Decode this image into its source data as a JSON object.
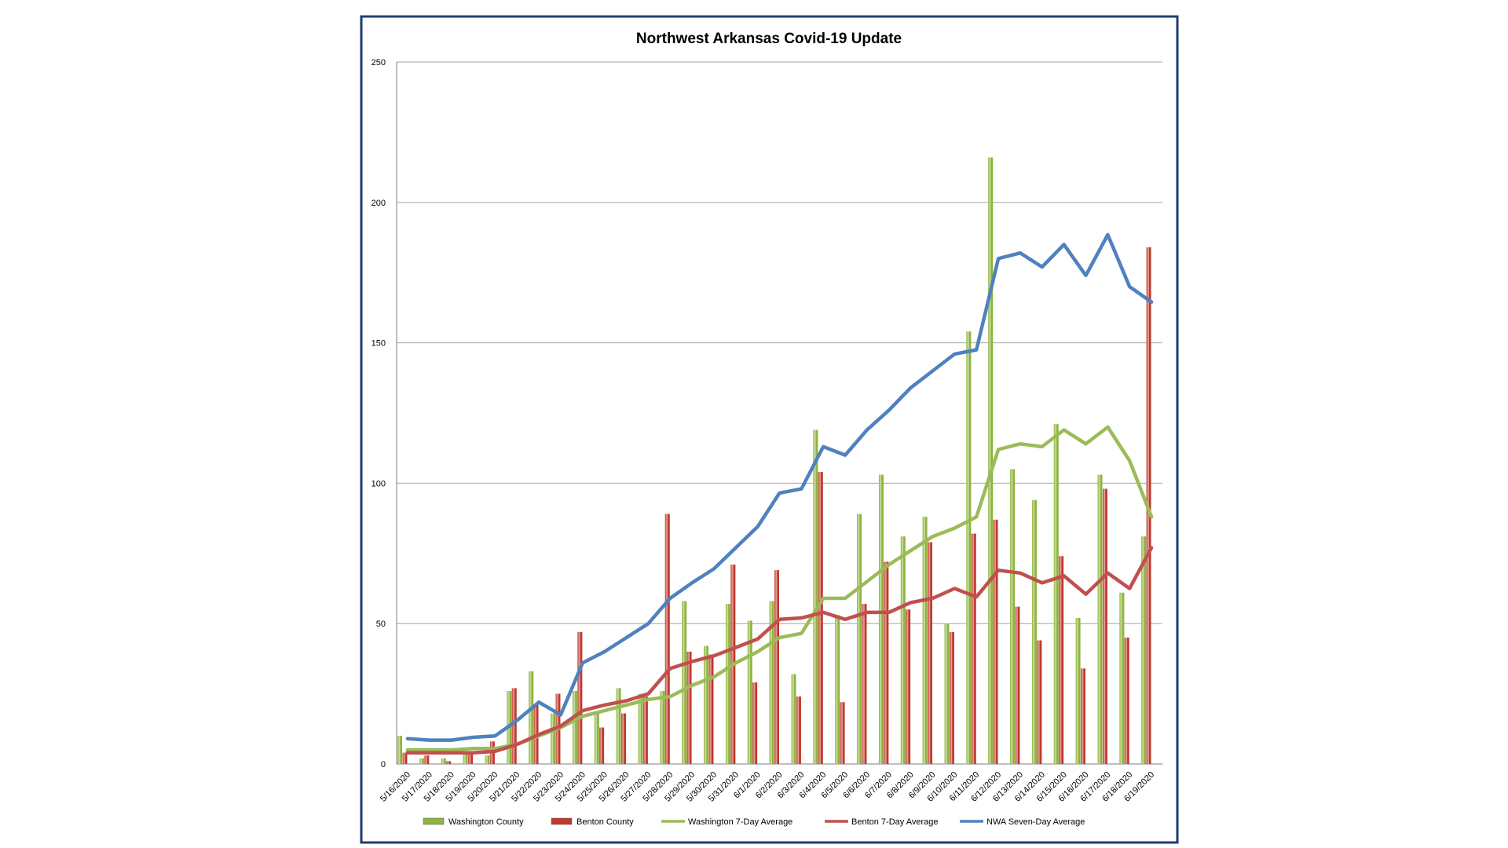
{
  "chart_data": {
    "type": "bar",
    "title": "Northwest Arkansas Covid-19 Update",
    "xlabel": "",
    "ylabel": "",
    "ylim": [
      0,
      250
    ],
    "yticks": [
      0,
      50,
      100,
      150,
      200,
      250
    ],
    "grid": true,
    "legend_position": "bottom",
    "categories": [
      "5/16/2020",
      "5/17/2020",
      "5/18/2020",
      "5/19/2020",
      "5/20/2020",
      "5/21/2020",
      "5/22/2020",
      "5/23/2020",
      "5/24/2020",
      "5/25/2020",
      "5/26/2020",
      "5/27/2020",
      "5/28/2020",
      "5/29/2020",
      "5/30/2020",
      "5/31/2020",
      "6/1/2020",
      "6/2/2020",
      "6/3/2020",
      "6/4/2020",
      "6/5/2020",
      "6/6/2020",
      "6/7/2020",
      "6/8/2020",
      "6/9/2020",
      "6/10/2020",
      "6/11/2020",
      "6/12/2020",
      "6/13/2020",
      "6/14/2020",
      "6/15/2020",
      "6/16/2020",
      "6/17/2020",
      "6/18/2020",
      "6/19/2020"
    ],
    "series": [
      {
        "name": "Washington County",
        "kind": "bar",
        "color": "#8DB43C",
        "values": [
          10,
          2,
          2,
          4,
          3,
          26,
          33,
          18,
          26,
          18,
          27,
          25,
          26,
          58,
          42,
          57,
          51,
          58,
          32,
          119,
          53,
          89,
          103,
          81,
          88,
          50,
          154,
          216,
          105,
          94,
          121,
          52,
          103,
          61,
          81
        ]
      },
      {
        "name": "Benton County",
        "kind": "bar",
        "color": "#C0392B",
        "values": [
          4,
          3,
          1,
          4,
          8,
          27,
          21,
          25,
          47,
          13,
          18,
          24,
          89,
          40,
          39,
          71,
          29,
          69,
          24,
          104,
          22,
          57,
          72,
          55,
          79,
          47,
          82,
          87,
          56,
          44,
          74,
          34,
          98,
          45,
          184
        ]
      },
      {
        "name": "Washington 7-Day Average",
        "kind": "line",
        "color": "#9BBB59",
        "values": [
          5,
          5,
          5,
          5.5,
          5.5,
          7,
          10,
          13,
          17,
          19,
          21,
          23,
          24,
          28,
          31,
          36,
          40,
          45,
          46.5,
          59,
          59,
          65,
          71,
          76,
          81,
          84,
          88,
          112,
          114,
          113,
          119,
          114,
          120,
          108,
          88
        ]
      },
      {
        "name": "Benton 7-Day Average",
        "kind": "line",
        "color": "#C0504D",
        "values": [
          4,
          4,
          4,
          4,
          4.5,
          7,
          10.5,
          13.5,
          19,
          21,
          22.5,
          25,
          34,
          36.5,
          38.5,
          41.5,
          44.5,
          51.5,
          52,
          54,
          51.5,
          54,
          54,
          57.5,
          59,
          62.5,
          59.5,
          69,
          68,
          64.5,
          67,
          60.5,
          68,
          62.5,
          77
        ]
      },
      {
        "name": "NWA Seven-Day Average",
        "kind": "line",
        "color": "#4F81BD",
        "values": [
          9,
          8.5,
          8.5,
          9.5,
          10,
          15.5,
          22,
          17.5,
          36,
          40,
          45,
          50,
          59,
          64.5,
          69.5,
          77,
          84.5,
          96.5,
          98,
          113,
          110,
          119,
          126,
          134,
          140,
          146,
          147.5,
          180,
          182,
          177,
          185,
          174,
          188.5,
          170,
          164.5
        ]
      }
    ]
  }
}
